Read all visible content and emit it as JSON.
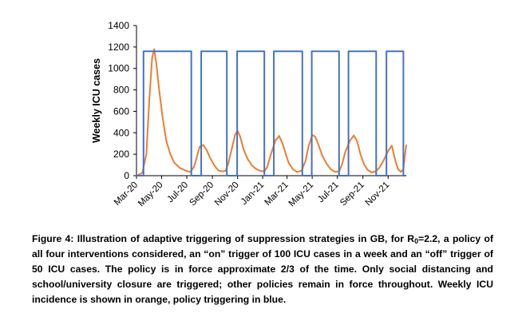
{
  "chart_data": {
    "type": "line",
    "ylabel": "Weekly ICU cases",
    "ylim": [
      0,
      1400
    ],
    "yticks": [
      0,
      200,
      400,
      600,
      800,
      1000,
      1200,
      1400
    ],
    "x_tick_labels": [
      "Mar-20",
      "May-20",
      "Jul-20",
      "Sep-20",
      "Nov-20",
      "Jan-21",
      "Mar-21",
      "May-21",
      "Jul-21",
      "Sep-21",
      "Nov-21"
    ],
    "x_start": "2020-03-01",
    "x_end": "2021-12-15",
    "grid": false,
    "legend": "none",
    "series": [
      {
        "color": "#ED7D31",
        "x": [
          "2020-03-01",
          "2020-03-15",
          "2020-03-25",
          "2020-04-01",
          "2020-04-08",
          "2020-04-13",
          "2020-04-18",
          "2020-04-25",
          "2020-05-03",
          "2020-05-12",
          "2020-05-22",
          "2020-06-01",
          "2020-06-15",
          "2020-06-30",
          "2020-07-10",
          "2020-07-18",
          "2020-07-23",
          "2020-08-01",
          "2020-08-10",
          "2020-08-18",
          "2020-08-26",
          "2020-09-05",
          "2020-09-15",
          "2020-09-25",
          "2020-10-03",
          "2020-10-10",
          "2020-10-18",
          "2020-10-26",
          "2020-11-01",
          "2020-11-08",
          "2020-11-15",
          "2020-11-25",
          "2020-12-05",
          "2020-12-15",
          "2020-12-26",
          "2021-01-05",
          "2021-01-12",
          "2021-01-20",
          "2021-02-01",
          "2021-02-10",
          "2021-02-18",
          "2021-02-26",
          "2021-03-05",
          "2021-03-15",
          "2021-03-25",
          "2021-04-05",
          "2021-04-15",
          "2021-04-22",
          "2021-05-01",
          "2021-05-08",
          "2021-05-15",
          "2021-05-25",
          "2021-06-05",
          "2021-06-15",
          "2021-06-25",
          "2021-07-05",
          "2021-07-12",
          "2021-07-20",
          "2021-08-01",
          "2021-08-10",
          "2021-08-18",
          "2021-08-26",
          "2021-09-03",
          "2021-09-12",
          "2021-09-22",
          "2021-10-02",
          "2021-10-12",
          "2021-10-22",
          "2021-11-01",
          "2021-11-10",
          "2021-11-18",
          "2021-11-25",
          "2021-12-02",
          "2021-12-08",
          "2021-12-15"
        ],
        "values": [
          0,
          25,
          200,
          700,
          1100,
          1180,
          1050,
          800,
          550,
          330,
          200,
          120,
          70,
          45,
          35,
          80,
          140,
          270,
          285,
          240,
          170,
          100,
          50,
          40,
          45,
          120,
          250,
          380,
          420,
          360,
          250,
          160,
          100,
          65,
          45,
          40,
          80,
          190,
          330,
          370,
          300,
          200,
          120,
          60,
          35,
          45,
          140,
          270,
          380,
          365,
          300,
          190,
          110,
          60,
          35,
          40,
          100,
          220,
          330,
          375,
          320,
          200,
          110,
          55,
          30,
          40,
          80,
          150,
          230,
          280,
          150,
          60,
          35,
          60,
          290
        ]
      },
      {
        "color": "#4472C4",
        "x": [
          "2020-03-01",
          "2020-03-18",
          "2020-03-18",
          "2020-07-12",
          "2020-07-12",
          "2020-08-05",
          "2020-08-05",
          "2020-10-06",
          "2020-10-06",
          "2020-10-31",
          "2020-10-31",
          "2021-01-05",
          "2021-01-05",
          "2021-01-28",
          "2021-01-28",
          "2021-04-07",
          "2021-04-07",
          "2021-04-30",
          "2021-04-30",
          "2021-07-05",
          "2021-07-05",
          "2021-07-28",
          "2021-07-28",
          "2021-10-03",
          "2021-10-03",
          "2021-10-28",
          "2021-10-28",
          "2021-12-08",
          "2021-12-08",
          "2021-12-15"
        ],
        "values": [
          0,
          0,
          1160,
          1160,
          0,
          0,
          1160,
          1160,
          0,
          0,
          1160,
          1160,
          0,
          0,
          1160,
          1160,
          0,
          0,
          1160,
          1160,
          0,
          0,
          1160,
          1160,
          0,
          0,
          1160,
          1160,
          0,
          0
        ]
      }
    ]
  },
  "caption": {
    "lead": "Figure 4: Illustration of adaptive triggering of suppression strategies in GB, for R",
    "sub": "0",
    "rest": "=2.2, a policy of all four interventions considered, an “on” trigger of 100 ICU cases in a week and an “off” trigger of 50 ICU cases.  The policy is in force approximate 2/3 of the time. Only social distancing and school/university closure are triggered; other policies remain in force throughout. Weekly ICU incidence is shown in orange, policy triggering in blue."
  }
}
